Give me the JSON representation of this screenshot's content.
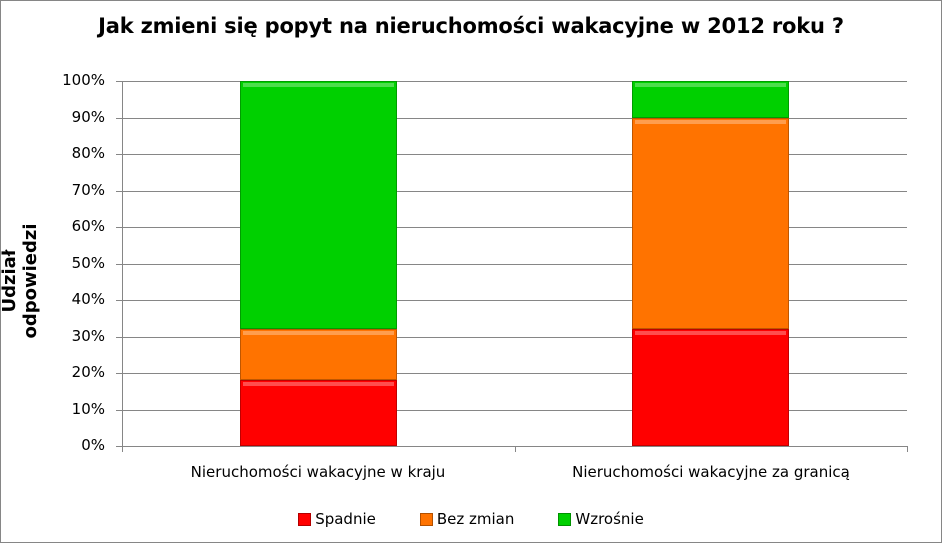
{
  "chart_data": {
    "type": "bar",
    "stacked": true,
    "percent": true,
    "title": "Jak zmieni się popyt na nieruchomości wakacyjne w 2012 roku ?",
    "xlabel": "",
    "ylabel": "Udział odpowiedzi",
    "ylim": [
      0,
      100
    ],
    "yticks": [
      "0%",
      "10%",
      "20%",
      "30%",
      "40%",
      "50%",
      "60%",
      "70%",
      "80%",
      "90%",
      "100%"
    ],
    "categories": [
      "Nieruchomości wakacyjne w kraju",
      "Nieruchomości wakacyjne za granicą"
    ],
    "series": [
      {
        "name": "Spadnie",
        "color": "#ff0000",
        "values": [
          18,
          32
        ]
      },
      {
        "name": "Bez zmian",
        "color": "#ff7300",
        "values": [
          14,
          58
        ]
      },
      {
        "name": "Wzrośnie",
        "color": "#00d000",
        "values": [
          68,
          10
        ]
      }
    ],
    "grid": true,
    "legend_position": "bottom"
  },
  "title": "Jak zmieni się popyt na nieruchomości wakacyjne w 2012 roku ?",
  "ylabel": "Udział odpowiedzi",
  "yticks": [
    "100%",
    "90%",
    "80%",
    "70%",
    "60%",
    "50%",
    "40%",
    "30%",
    "20%",
    "10%",
    "0%"
  ],
  "categories": [
    "Nieruchomości wakacyjne w kraju",
    "Nieruchomości wakacyjne za granicą"
  ],
  "legend": [
    "Spadnie",
    "Bez zmian",
    "Wzrośnie"
  ]
}
